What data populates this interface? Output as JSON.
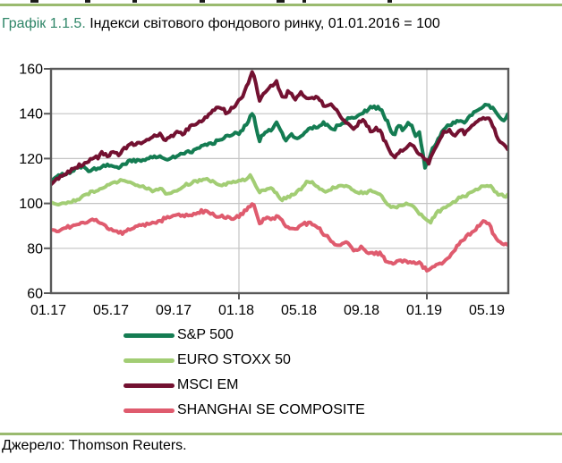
{
  "header": {
    "title_accent": "Графік 1.1.5.",
    "title_rest": " Індекси світового фондового ринку, 01.01.2016 = 100"
  },
  "footer": {
    "source_text": "Джерело: Thomson Reuters."
  },
  "colors": {
    "accent_green": "#2E8567",
    "rule_green": "#9ABA6F",
    "axis_border": "#595959",
    "gridline": "#C4C4C4",
    "text": "#000000"
  },
  "chart_data": {
    "type": "line",
    "title": "Індекси світового фондового ринку, 01.01.2016 = 100",
    "xlabel": "",
    "ylabel": "",
    "ylim": [
      60,
      160
    ],
    "yticks": [
      160,
      140,
      120,
      100,
      80,
      60
    ],
    "x_axis": {
      "unit": "months since 2017-01",
      "ticks": [
        "01.17",
        "05.17",
        "09.17",
        "01.18",
        "05.18",
        "09.18",
        "01.19",
        "05.19"
      ],
      "tick_months": [
        0,
        4,
        8,
        12,
        16,
        20,
        24,
        28
      ],
      "domain_months": [
        0,
        29.2
      ]
    },
    "grid": {
      "horizontal": [
        140,
        120,
        100,
        80
      ],
      "vertical_months": [
        12,
        24
      ]
    },
    "legend_position": "bottom-left",
    "series": [
      {
        "name": "S&P 500",
        "color": "#147C52",
        "points": [
          [
            0,
            110
          ],
          [
            0.5,
            112.5
          ],
          [
            1,
            113.5
          ],
          [
            1.5,
            115.3
          ],
          [
            2,
            116.2
          ],
          [
            2.4,
            114.8
          ],
          [
            3,
            115.2
          ],
          [
            3.5,
            116.6
          ],
          [
            4,
            117.2
          ],
          [
            4.3,
            115.8
          ],
          [
            5,
            118.6
          ],
          [
            5.5,
            119.4
          ],
          [
            6,
            119
          ],
          [
            6.5,
            121
          ],
          [
            7,
            120.8
          ],
          [
            7.4,
            119.6
          ],
          [
            8,
            120.7
          ],
          [
            8.5,
            122.4
          ],
          [
            9,
            123.4
          ],
          [
            9.5,
            125.5
          ],
          [
            10,
            126.2
          ],
          [
            10.5,
            127.2
          ],
          [
            11,
            129.4
          ],
          [
            11.5,
            130.6
          ],
          [
            12,
            131
          ],
          [
            12.5,
            135.6
          ],
          [
            12.9,
            140.6
          ],
          [
            13.3,
            127.8
          ],
          [
            13.6,
            131.5
          ],
          [
            14,
            132.8
          ],
          [
            14.4,
            135.9
          ],
          [
            15,
            127.9
          ],
          [
            15.3,
            131
          ],
          [
            15.6,
            129
          ],
          [
            16,
            129.6
          ],
          [
            16.5,
            133.4
          ],
          [
            17,
            133.9
          ],
          [
            17.4,
            136
          ],
          [
            18,
            133.2
          ],
          [
            18.5,
            135.2
          ],
          [
            19,
            137.8
          ],
          [
            19.6,
            139.2
          ],
          [
            20,
            141.3
          ],
          [
            20.6,
            143.4
          ],
          [
            21,
            142.6
          ],
          [
            21.3,
            138.5
          ],
          [
            21.9,
            130.2
          ],
          [
            22.2,
            134.8
          ],
          [
            22.5,
            132.5
          ],
          [
            22.8,
            136
          ],
          [
            23,
            135.2
          ],
          [
            23.3,
            129.8
          ],
          [
            23.5,
            132
          ],
          [
            23.9,
            115.8
          ],
          [
            24.2,
            121.5
          ],
          [
            24.6,
            127.2
          ],
          [
            25,
            132.2
          ],
          [
            25.5,
            135
          ],
          [
            26,
            137.3
          ],
          [
            26.3,
            135.7
          ],
          [
            27,
            140.6
          ],
          [
            27.8,
            144.2
          ],
          [
            28,
            144
          ],
          [
            28.5,
            139.6
          ],
          [
            28.9,
            136.6
          ],
          [
            29.2,
            140.3
          ]
        ]
      },
      {
        "name": "EURO STOXX 50",
        "color": "#A2CD74",
        "points": [
          [
            0,
            100.6
          ],
          [
            0.3,
            99.6
          ],
          [
            1,
            100.1
          ],
          [
            1.5,
            101.2
          ],
          [
            2,
            102.6
          ],
          [
            2.5,
            104.9
          ],
          [
            3,
            106.1
          ],
          [
            3.7,
            108.6
          ],
          [
            4,
            109.1
          ],
          [
            4.5,
            110.4
          ],
          [
            5,
            109.4
          ],
          [
            5.5,
            107.9
          ],
          [
            6,
            107.4
          ],
          [
            6.5,
            105.9
          ],
          [
            7,
            106.4
          ],
          [
            7.3,
            104.6
          ],
          [
            8,
            105.6
          ],
          [
            8.7,
            108.6
          ],
          [
            9,
            109
          ],
          [
            9.5,
            110.4
          ],
          [
            10,
            111.2
          ],
          [
            10.5,
            108.6
          ],
          [
            11,
            108.4
          ],
          [
            11.5,
            109.6
          ],
          [
            12,
            110.1
          ],
          [
            12.8,
            112.1
          ],
          [
            13.3,
            104.4
          ],
          [
            13.7,
            106.6
          ],
          [
            14,
            107
          ],
          [
            14.8,
            101.6
          ],
          [
            15.3,
            103.4
          ],
          [
            16,
            106.4
          ],
          [
            16.4,
            110.3
          ],
          [
            17,
            107.2
          ],
          [
            17.4,
            105.4
          ],
          [
            18,
            106.6
          ],
          [
            18.5,
            107.9
          ],
          [
            19,
            107.7
          ],
          [
            19.5,
            105.1
          ],
          [
            20,
            104.7
          ],
          [
            20.5,
            105.9
          ],
          [
            21,
            104.1
          ],
          [
            21.5,
            99.6
          ],
          [
            22,
            98.3
          ],
          [
            22.5,
            99.9
          ],
          [
            23,
            99.4
          ],
          [
            23.5,
            95.6
          ],
          [
            24,
            92.9
          ],
          [
            24.2,
            91.4
          ],
          [
            24.7,
            96.4
          ],
          [
            25,
            97.6
          ],
          [
            25.7,
            100.4
          ],
          [
            26,
            102.4
          ],
          [
            26.5,
            103.6
          ],
          [
            27,
            105.9
          ],
          [
            27.8,
            108.1
          ],
          [
            28,
            108.4
          ],
          [
            28.5,
            104.4
          ],
          [
            28.9,
            103.1
          ],
          [
            29.2,
            104.1
          ]
        ]
      },
      {
        "name": "MSCI EM",
        "color": "#731131",
        "points": [
          [
            0,
            108.5
          ],
          [
            0.5,
            111.5
          ],
          [
            1,
            113.8
          ],
          [
            1.5,
            115.5
          ],
          [
            2,
            117.5
          ],
          [
            2.5,
            119.3
          ],
          [
            3,
            120.8
          ],
          [
            3.3,
            122.5
          ],
          [
            3.6,
            120.9
          ],
          [
            4,
            123
          ],
          [
            4.3,
            121.6
          ],
          [
            5,
            125.9
          ],
          [
            5.5,
            126.6
          ],
          [
            6,
            127.6
          ],
          [
            6.5,
            129.7
          ],
          [
            7,
            130.6
          ],
          [
            7.3,
            128.2
          ],
          [
            8,
            132
          ],
          [
            8.4,
            130.9
          ],
          [
            9,
            134.3
          ],
          [
            9.5,
            136.4
          ],
          [
            10,
            138.6
          ],
          [
            10.6,
            143
          ],
          [
            11,
            141.9
          ],
          [
            11.3,
            140.3
          ],
          [
            12,
            145.6
          ],
          [
            12.5,
            152
          ],
          [
            12.9,
            159.6
          ],
          [
            13.3,
            145.6
          ],
          [
            13.6,
            149.2
          ],
          [
            14,
            151.6
          ],
          [
            14.4,
            154.6
          ],
          [
            14.8,
            146.4
          ],
          [
            15.2,
            149.9
          ],
          [
            15.6,
            147
          ],
          [
            16,
            149
          ],
          [
            16.4,
            147
          ],
          [
            17,
            147.5
          ],
          [
            17.4,
            144
          ],
          [
            18,
            143.6
          ],
          [
            18.6,
            137.9
          ],
          [
            19,
            135.3
          ],
          [
            19.3,
            133.4
          ],
          [
            19.8,
            137.2
          ],
          [
            20,
            136.4
          ],
          [
            20.4,
            132.3
          ],
          [
            20.8,
            133.6
          ],
          [
            21,
            132.6
          ],
          [
            21.4,
            126.2
          ],
          [
            21.9,
            120.6
          ],
          [
            22.2,
            122.9
          ],
          [
            22.6,
            124.6
          ],
          [
            23,
            126.3
          ],
          [
            23.4,
            123.4
          ],
          [
            23.9,
            119.8
          ],
          [
            24.1,
            117.6
          ],
          [
            24.5,
            124.3
          ],
          [
            25,
            131.4
          ],
          [
            25.4,
            132.6
          ],
          [
            25.8,
            129.9
          ],
          [
            26,
            133
          ],
          [
            26.4,
            131.7
          ],
          [
            27,
            135.6
          ],
          [
            27.6,
            138.1
          ],
          [
            28,
            137.6
          ],
          [
            28.3,
            132.8
          ],
          [
            28.7,
            127.3
          ],
          [
            29,
            124.9
          ],
          [
            29.2,
            123.9
          ]
        ]
      },
      {
        "name": "SHANGHAI SE COMPOSITE",
        "color": "#DF5B6E",
        "points": [
          [
            0,
            88.3
          ],
          [
            0.5,
            87.9
          ],
          [
            1,
            89.4
          ],
          [
            1.5,
            90.4
          ],
          [
            2,
            91.4
          ],
          [
            2.7,
            92.4
          ],
          [
            3,
            92.1
          ],
          [
            3.5,
            89.6
          ],
          [
            4,
            88.4
          ],
          [
            4.4,
            86.6
          ],
          [
            5,
            88.4
          ],
          [
            5.5,
            89.9
          ],
          [
            6,
            90.4
          ],
          [
            6.5,
            91.4
          ],
          [
            7,
            92.4
          ],
          [
            7.5,
            93.9
          ],
          [
            8,
            94.9
          ],
          [
            8.5,
            94.4
          ],
          [
            9,
            94.9
          ],
          [
            9.6,
            96.6
          ],
          [
            10,
            96.4
          ],
          [
            10.5,
            94.4
          ],
          [
            11,
            93.9
          ],
          [
            11.5,
            93.4
          ],
          [
            12,
            94.1
          ],
          [
            12.9,
            100.4
          ],
          [
            13.3,
            90.9
          ],
          [
            13.7,
            93.6
          ],
          [
            14,
            92.9
          ],
          [
            14.5,
            94.4
          ],
          [
            15,
            89.9
          ],
          [
            15.5,
            88.4
          ],
          [
            16,
            90.4
          ],
          [
            16.5,
            91.1
          ],
          [
            17,
            89.4
          ],
          [
            17.5,
            85.9
          ],
          [
            18,
            82.4
          ],
          [
            18.3,
            80.9
          ],
          [
            18.7,
            82.6
          ],
          [
            19,
            82.1
          ],
          [
            19.4,
            78.7
          ],
          [
            19.8,
            80.4
          ],
          [
            20,
            78.9
          ],
          [
            20.5,
            77.4
          ],
          [
            21,
            77.9
          ],
          [
            21.5,
            73.4
          ],
          [
            22,
            73.6
          ],
          [
            22.4,
            74.9
          ],
          [
            23,
            73.4
          ],
          [
            23.5,
            73.9
          ],
          [
            24,
            70.4
          ],
          [
            24.1,
            69.7
          ],
          [
            24.5,
            72.4
          ],
          [
            25,
            73.6
          ],
          [
            25.8,
            78.9
          ],
          [
            26,
            81.9
          ],
          [
            26.5,
            85.4
          ],
          [
            27,
            87.4
          ],
          [
            27.6,
            92.4
          ],
          [
            28,
            90.4
          ],
          [
            28.3,
            85.4
          ],
          [
            28.7,
            82.4
          ],
          [
            29.2,
            81.4
          ]
        ]
      }
    ]
  }
}
